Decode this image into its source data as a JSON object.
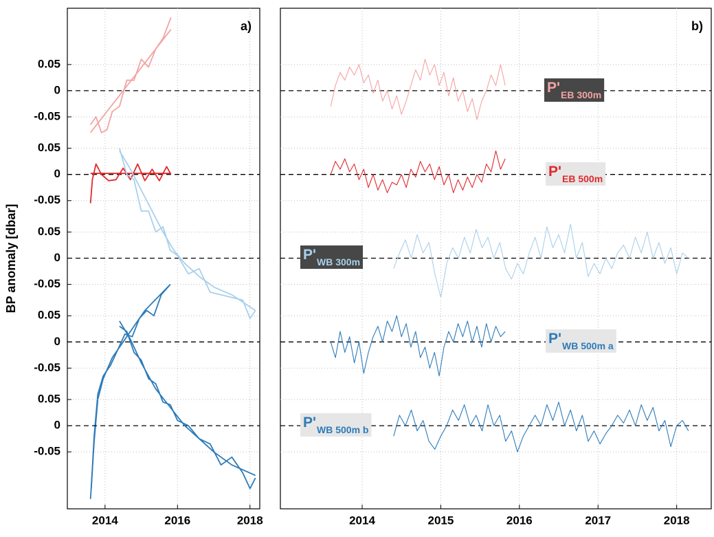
{
  "chart_data": {
    "type": "line",
    "ylabel": "BP anomaly [dbar]",
    "grid": true,
    "panels": [
      {
        "label": "a)",
        "xlim": [
          2012.96,
          2018.27
        ],
        "xticks": [
          2014,
          2016,
          2018
        ]
      },
      {
        "label": "b)",
        "xlim": [
          2012.96,
          2018.44
        ],
        "xticks": [
          2014,
          2015,
          2016,
          2017,
          2018
        ]
      }
    ],
    "bands": [
      {
        "ylim": [
          -0.08,
          0.08
        ],
        "yticks": [
          0.05,
          0,
          -0.05
        ],
        "color": "#f4a3a3",
        "label": {
          "main": "P'",
          "sub": "EB 300m",
          "box": "#474747"
        },
        "panel_a": [
          {
            "x": [
              2013.6,
              2015.82
            ],
            "values": [
              -0.08,
              0.117
            ]
          },
          {
            "x": [
              2013.6,
              2013.75,
              2013.9,
              2014.05,
              2014.2,
              2014.4,
              2014.6,
              2014.8,
              2015.0,
              2015.2,
              2015.4,
              2015.6,
              2015.82
            ],
            "values": [
              -0.065,
              -0.05,
              -0.08,
              -0.075,
              -0.04,
              -0.03,
              0.02,
              0.02,
              0.06,
              0.045,
              0.08,
              0.1,
              0.14
            ]
          }
        ],
        "panel_b": {
          "x": [
            2013.6,
            2013.66,
            2013.72,
            2013.78,
            2013.84,
            2013.9,
            2013.96,
            2014.02,
            2014.08,
            2014.14,
            2014.2,
            2014.26,
            2014.32,
            2014.38,
            2014.44,
            2014.5,
            2014.56,
            2014.62,
            2014.68,
            2014.74,
            2014.8,
            2014.86,
            2014.92,
            2014.98,
            2015.04,
            2015.1,
            2015.16,
            2015.22,
            2015.28,
            2015.34,
            2015.4,
            2015.46,
            2015.52,
            2015.58,
            2015.64,
            2015.7,
            2015.76,
            2015.82
          ],
          "values": [
            -0.03,
            0.01,
            0.035,
            0.02,
            0.045,
            0.03,
            0.05,
            0.015,
            0.03,
            -0.005,
            0.02,
            -0.02,
            0.0,
            -0.035,
            -0.01,
            -0.045,
            -0.02,
            0.01,
            0.04,
            0.02,
            0.06,
            0.03,
            0.05,
            0.01,
            0.035,
            -0.01,
            0.025,
            -0.02,
            0.0,
            -0.04,
            -0.015,
            -0.055,
            -0.02,
            0.0,
            0.03,
            0.01,
            0.05,
            0.01
          ]
        }
      },
      {
        "ylim": [
          -0.08,
          0.08
        ],
        "yticks": [
          0.05,
          0,
          -0.05
        ],
        "color": "#e0292c",
        "label": {
          "main": "P'",
          "sub": "EB 500m",
          "box": "#e6e6e6"
        },
        "panel_a": [
          {
            "x": [
              2013.6,
              2015.82
            ],
            "values": [
              0.002,
              0.002
            ]
          },
          {
            "x": [
              2013.6,
              2013.65,
              2013.75,
              2013.9,
              2014.1,
              2014.3,
              2014.5,
              2014.7,
              2014.9,
              2015.1,
              2015.3,
              2015.5,
              2015.7,
              2015.82
            ],
            "values": [
              -0.055,
              -0.01,
              0.02,
              0.0,
              -0.012,
              -0.01,
              0.012,
              -0.01,
              0.02,
              -0.012,
              0.01,
              -0.012,
              0.015,
              0.0
            ]
          }
        ],
        "panel_b": {
          "x": [
            2013.6,
            2013.66,
            2013.72,
            2013.78,
            2013.84,
            2013.9,
            2013.96,
            2014.02,
            2014.08,
            2014.14,
            2014.2,
            2014.26,
            2014.32,
            2014.38,
            2014.44,
            2014.5,
            2014.56,
            2014.62,
            2014.68,
            2014.74,
            2014.8,
            2014.86,
            2014.92,
            2014.98,
            2015.04,
            2015.1,
            2015.16,
            2015.22,
            2015.28,
            2015.34,
            2015.4,
            2015.46,
            2015.52,
            2015.58,
            2015.64,
            2015.7,
            2015.76,
            2015.82
          ],
          "values": [
            0.0,
            0.025,
            0.01,
            0.03,
            0.005,
            0.02,
            -0.01,
            0.01,
            -0.025,
            0.0,
            -0.03,
            -0.01,
            -0.035,
            -0.015,
            -0.02,
            0.0,
            -0.025,
            0.01,
            -0.005,
            0.025,
            0.005,
            0.02,
            -0.01,
            0.015,
            -0.02,
            0.0,
            -0.035,
            -0.01,
            -0.03,
            -0.005,
            -0.025,
            0.0,
            -0.015,
            0.02,
            0.005,
            0.045,
            0.01,
            0.03
          ]
        }
      },
      {
        "ylim": [
          -0.08,
          0.08
        ],
        "yticks": [
          0.05,
          0,
          -0.05
        ],
        "color": "#a9d0ea",
        "label": {
          "main": "P'",
          "sub": "WB 300m",
          "box": "#474747"
        },
        "panel_a": [
          {
            "x": [
              2014.4,
              2014.7,
              2015.0,
              2015.3,
              2015.6,
              2015.9,
              2016.2,
              2016.6,
              2017.0,
              2017.5,
              2018.15
            ],
            "values": [
              0.205,
              0.17,
              0.13,
              0.09,
              0.05,
              0.015,
              -0.01,
              -0.035,
              -0.055,
              -0.07,
              -0.1
            ]
          },
          {
            "x": [
              2014.4,
              2014.6,
              2014.8,
              2015.0,
              2015.2,
              2015.4,
              2015.6,
              2015.8,
              2016.0,
              2016.3,
              2016.6,
              2016.9,
              2017.2,
              2017.5,
              2017.8,
              2018.0,
              2018.15
            ],
            "values": [
              0.21,
              0.16,
              0.15,
              0.09,
              0.09,
              0.05,
              0.06,
              0.015,
              0.005,
              -0.03,
              -0.02,
              -0.065,
              -0.07,
              -0.075,
              -0.08,
              -0.115,
              -0.1
            ]
          }
        ],
        "panel_b": {
          "x": [
            2014.4,
            2014.475,
            2014.55,
            2014.625,
            2014.7,
            2014.775,
            2014.85,
            2014.925,
            2015.0,
            2015.075,
            2015.15,
            2015.225,
            2015.3,
            2015.375,
            2015.45,
            2015.525,
            2015.6,
            2015.675,
            2015.75,
            2015.825,
            2015.9,
            2015.975,
            2016.05,
            2016.125,
            2016.2,
            2016.275,
            2016.35,
            2016.425,
            2016.5,
            2016.575,
            2016.65,
            2016.725,
            2016.8,
            2016.875,
            2016.95,
            2017.025,
            2017.1,
            2017.175,
            2017.25,
            2017.325,
            2017.4,
            2017.475,
            2017.55,
            2017.625,
            2017.7,
            2017.775,
            2017.85,
            2017.925,
            2018.0,
            2018.075,
            2018.15
          ],
          "values": [
            -0.02,
            0.01,
            0.035,
            0.0,
            0.045,
            0.01,
            0.03,
            -0.03,
            -0.075,
            -0.01,
            0.02,
            0.0,
            0.04,
            0.01,
            0.055,
            0.02,
            0.04,
            0.0,
            0.03,
            -0.02,
            -0.04,
            -0.01,
            -0.03,
            0.01,
            0.04,
            0.0,
            0.06,
            0.02,
            0.045,
            0.01,
            0.065,
            0.0,
            0.03,
            -0.035,
            -0.01,
            -0.03,
            0.0,
            -0.02,
            0.01,
            0.025,
            0.0,
            0.04,
            0.01,
            0.05,
            0.0,
            0.03,
            -0.01,
            0.02,
            -0.03,
            0.01,
            0.0
          ]
        }
      },
      {
        "ylim": [
          -0.08,
          0.08
        ],
        "yticks": [
          0.05,
          0,
          -0.05
        ],
        "color": "#2c7bba",
        "label": {
          "main": "P'",
          "sub": "WB 500m a",
          "box": "#e6e6e6"
        },
        "panel_a": [
          {
            "x": [
              2013.6,
              2013.7,
              2013.8,
              2013.95,
              2014.2,
              2014.5,
              2014.8,
              2015.1,
              2015.45,
              2015.8
            ],
            "values": [
              -0.3,
              -0.19,
              -0.11,
              -0.07,
              -0.03,
              0.0,
              0.03,
              0.06,
              0.085,
              0.11
            ]
          },
          {
            "x": [
              2013.62,
              2013.7,
              2013.8,
              2013.95,
              2014.15,
              2014.35,
              2014.55,
              2014.75,
              2014.95,
              2015.15,
              2015.35,
              2015.55,
              2015.8
            ],
            "values": [
              -0.28,
              -0.18,
              -0.1,
              -0.065,
              -0.045,
              -0.015,
              0.015,
              0.01,
              0.045,
              0.06,
              0.05,
              0.09,
              0.11
            ]
          }
        ],
        "panel_b": {
          "x": [
            2013.6,
            2013.66,
            2013.72,
            2013.78,
            2013.84,
            2013.9,
            2013.96,
            2014.02,
            2014.08,
            2014.14,
            2014.2,
            2014.26,
            2014.32,
            2014.38,
            2014.44,
            2014.5,
            2014.56,
            2014.62,
            2014.68,
            2014.74,
            2014.8,
            2014.86,
            2014.92,
            2014.98,
            2015.04,
            2015.1,
            2015.16,
            2015.22,
            2015.28,
            2015.34,
            2015.4,
            2015.46,
            2015.52,
            2015.58,
            2015.64,
            2015.7,
            2015.76,
            2015.82
          ],
          "values": [
            0.0,
            -0.03,
            0.02,
            -0.02,
            0.01,
            -0.04,
            0.0,
            -0.06,
            -0.02,
            0.01,
            0.03,
            0.0,
            0.04,
            0.02,
            0.05,
            0.01,
            0.035,
            -0.01,
            0.02,
            -0.03,
            -0.01,
            -0.05,
            -0.02,
            -0.065,
            -0.01,
            0.02,
            0.0,
            0.035,
            0.01,
            0.04,
            0.0,
            0.03,
            -0.01,
            0.035,
            0.0,
            0.03,
            0.01,
            0.02
          ]
        }
      },
      {
        "ylim": [
          -0.08,
          0.08
        ],
        "yticks": [
          0.05,
          0,
          -0.05
        ],
        "color": "#2c7bba",
        "label": {
          "main": "P'",
          "sub": "WB 500m b",
          "box": "#e6e6e6"
        },
        "panel_a": [
          {
            "x": [
              2014.4,
              2014.7,
              2015.0,
              2015.4,
              2015.8,
              2016.2,
              2016.6,
              2017.0,
              2017.5,
              2018.15
            ],
            "values": [
              0.2,
              0.165,
              0.12,
              0.07,
              0.035,
              0.0,
              -0.025,
              -0.05,
              -0.075,
              -0.095
            ]
          },
          {
            "x": [
              2014.4,
              2014.6,
              2014.8,
              2015.0,
              2015.2,
              2015.4,
              2015.6,
              2015.8,
              2016.0,
              2016.3,
              2016.6,
              2016.9,
              2017.2,
              2017.5,
              2017.8,
              2018.0,
              2018.15
            ],
            "values": [
              0.19,
              0.18,
              0.14,
              0.125,
              0.09,
              0.08,
              0.045,
              0.04,
              0.01,
              0.0,
              -0.025,
              -0.035,
              -0.075,
              -0.06,
              -0.09,
              -0.12,
              -0.1
            ]
          }
        ],
        "panel_b": {
          "x": [
            2014.4,
            2014.475,
            2014.55,
            2014.625,
            2014.7,
            2014.775,
            2014.85,
            2014.925,
            2015.0,
            2015.075,
            2015.15,
            2015.225,
            2015.3,
            2015.375,
            2015.45,
            2015.525,
            2015.6,
            2015.675,
            2015.75,
            2015.825,
            2015.9,
            2015.975,
            2016.05,
            2016.125,
            2016.2,
            2016.275,
            2016.35,
            2016.425,
            2016.5,
            2016.575,
            2016.65,
            2016.725,
            2016.8,
            2016.875,
            2016.95,
            2017.025,
            2017.1,
            2017.175,
            2017.25,
            2017.325,
            2017.4,
            2017.475,
            2017.55,
            2017.625,
            2017.7,
            2017.775,
            2017.85,
            2017.925,
            2018.0,
            2018.075,
            2018.15
          ],
          "values": [
            -0.02,
            0.02,
            0.0,
            0.03,
            -0.01,
            0.01,
            -0.03,
            -0.045,
            -0.02,
            0.0,
            0.03,
            0.01,
            0.04,
            0.0,
            0.02,
            -0.01,
            0.04,
            0.0,
            0.02,
            -0.03,
            -0.01,
            -0.05,
            -0.02,
            0.0,
            0.02,
            0.0,
            0.04,
            0.01,
            0.045,
            0.0,
            0.03,
            -0.01,
            0.02,
            -0.03,
            -0.01,
            -0.035,
            -0.015,
            0.0,
            0.02,
            0.005,
            0.03,
            0.0,
            0.04,
            0.01,
            0.035,
            -0.01,
            0.01,
            -0.04,
            0.0,
            0.01,
            -0.01
          ]
        }
      }
    ]
  }
}
